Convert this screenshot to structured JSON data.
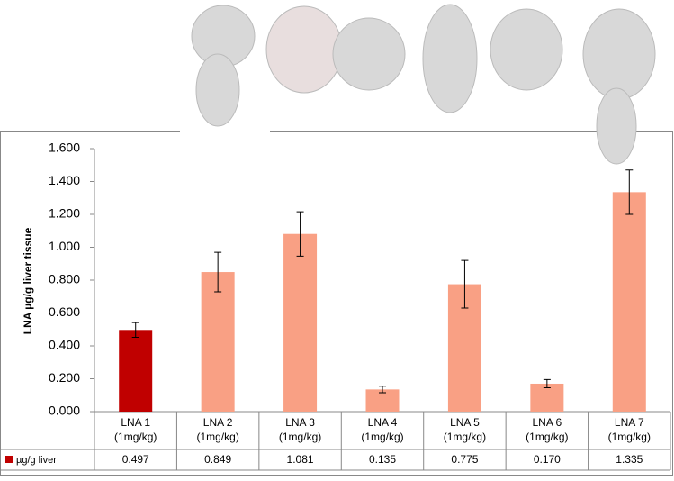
{
  "chart_data": {
    "type": "bar",
    "y_axis_label": "LNA µg/g liver tissue",
    "categories": [
      "LNA 1",
      "LNA 2",
      "LNA 3",
      "LNA 4",
      "LNA 5",
      "LNA 6",
      "LNA 7"
    ],
    "category_sublabels": [
      "(1mg/kg)",
      "(1mg/kg)",
      "(1mg/kg)",
      "(1mg/kg)",
      "(1mg/kg)",
      "(1mg/kg)",
      "(1mg/kg)"
    ],
    "series": [
      {
        "name": "µg/g liver",
        "colors": [
          "#c00000",
          "#f9a084",
          "#f9a084",
          "#f9a084",
          "#f9a084",
          "#f9a084",
          "#f9a084"
        ],
        "values": [
          0.497,
          0.849,
          1.081,
          0.135,
          0.775,
          0.17,
          1.335
        ],
        "value_labels": [
          "0.497",
          "0.849",
          "1.081",
          "0.135",
          "0.775",
          "0.170",
          "1.335"
        ],
        "errors": [
          0.045,
          0.12,
          0.135,
          0.02,
          0.145,
          0.025,
          0.135
        ]
      }
    ],
    "ylim": [
      0,
      1.6
    ],
    "yticks": [
      {
        "value": 0,
        "label": "0.000"
      },
      {
        "value": 0.2,
        "label": "0.200"
      },
      {
        "value": 0.4,
        "label": "0.400"
      },
      {
        "value": 0.6,
        "label": "0.600"
      },
      {
        "value": 0.8,
        "label": "0.800"
      },
      {
        "value": 1.0,
        "label": "1.000"
      },
      {
        "value": 1.2,
        "label": "1.200"
      },
      {
        "value": 1.4,
        "label": "1.400"
      },
      {
        "value": 1.6,
        "label": "1.600"
      }
    ],
    "grid": false
  }
}
